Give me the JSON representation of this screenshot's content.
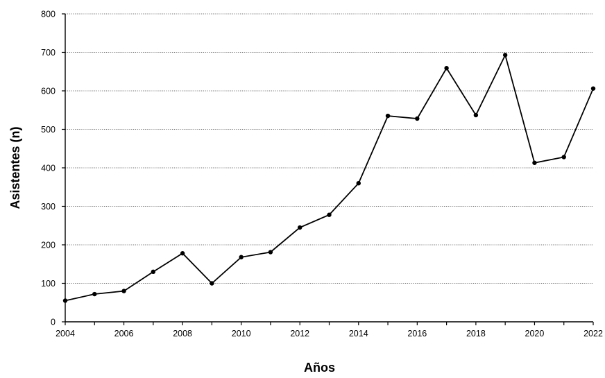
{
  "chart_data": {
    "type": "line",
    "title": "",
    "xlabel": "Años",
    "ylabel": "Asistentes (n)",
    "x": [
      2004,
      2005,
      2006,
      2007,
      2008,
      2009,
      2010,
      2011,
      2012,
      2013,
      2014,
      2015,
      2016,
      2017,
      2018,
      2019,
      2020,
      2021,
      2022
    ],
    "series": [
      {
        "values": [
          55,
          72,
          80,
          130,
          178,
          100,
          168,
          181,
          245,
          278,
          360,
          535,
          528,
          659,
          537,
          693,
          413,
          428,
          606
        ]
      }
    ],
    "xlim": [
      2004,
      2022
    ],
    "ylim": [
      0,
      800
    ],
    "xticks": [
      "2004",
      "2006",
      "2008",
      "2010",
      "2012",
      "2014",
      "2016",
      "2018",
      "2020",
      "2022"
    ],
    "yticks": [
      "0",
      "100",
      "200",
      "300",
      "400",
      "500",
      "600",
      "700",
      "800"
    ],
    "grid": "horizontal dotted",
    "legend": "none",
    "colors": {
      "line": "#000000",
      "marker": "#000000",
      "grid": "#444444",
      "axis": "#000000"
    }
  }
}
